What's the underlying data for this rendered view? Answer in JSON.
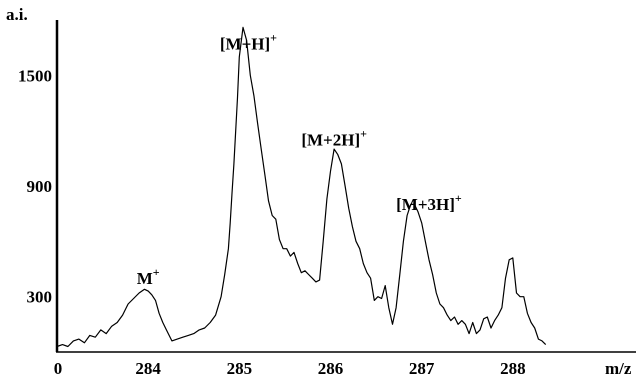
{
  "chart_data": {
    "type": "line",
    "ylabel": "a.i.",
    "xlabel": "m/z",
    "origin_label": "0",
    "xlim": [
      283.0,
      289.34
    ],
    "ylim": [
      0,
      1800
    ],
    "x_ticks": [
      "284",
      "285",
      "286",
      "287",
      "288"
    ],
    "x_tick_values": [
      284,
      285,
      286,
      287,
      288
    ],
    "y_ticks": [
      "300",
      "900",
      "1500"
    ],
    "y_tick_values": [
      300,
      900,
      1500
    ],
    "grid": false,
    "legend": "none",
    "annotations": [
      {
        "text": "M",
        "sup": "+",
        "x": 284.0,
        "y": 370
      },
      {
        "text": "[M+H]",
        "sup": "+",
        "x": 285.1,
        "y": 1640
      },
      {
        "text": "[M+2H]",
        "sup": "+",
        "x": 286.04,
        "y": 1120
      },
      {
        "text": "[M+3H]",
        "sup": "+",
        "x": 287.08,
        "y": 770
      }
    ],
    "series": [
      {
        "line_color": "#000000",
        "x": [
          283.0,
          283.06,
          283.12,
          283.18,
          283.24,
          283.3,
          283.36,
          283.42,
          283.48,
          283.54,
          283.6,
          283.66,
          283.72,
          283.78,
          283.84,
          283.9,
          283.96,
          284.0,
          284.04,
          284.08,
          284.12,
          284.16,
          284.2,
          284.26,
          284.32,
          284.38,
          284.44,
          284.5,
          284.56,
          284.62,
          284.68,
          284.74,
          284.8,
          284.84,
          284.88,
          284.9,
          284.92,
          284.94,
          284.96,
          284.98,
          285.0,
          285.04,
          285.08,
          285.12,
          285.16,
          285.2,
          285.24,
          285.28,
          285.32,
          285.36,
          285.4,
          285.44,
          285.48,
          285.52,
          285.56,
          285.6,
          285.64,
          285.68,
          285.72,
          285.76,
          285.8,
          285.84,
          285.88,
          285.92,
          285.96,
          286.0,
          286.04,
          286.08,
          286.12,
          286.16,
          286.2,
          286.24,
          286.28,
          286.32,
          286.36,
          286.4,
          286.44,
          286.48,
          286.52,
          286.56,
          286.6,
          286.64,
          286.68,
          286.72,
          286.76,
          286.8,
          286.84,
          286.88,
          286.92,
          286.96,
          287.0,
          287.04,
          287.08,
          287.12,
          287.16,
          287.2,
          287.24,
          287.28,
          287.32,
          287.36,
          287.4,
          287.44,
          287.48,
          287.52,
          287.56,
          287.6,
          287.64,
          287.68,
          287.72,
          287.76,
          287.8,
          287.84,
          287.88,
          287.92,
          287.96,
          288.0,
          288.04,
          288.08,
          288.12,
          288.16,
          288.2,
          288.24,
          288.28,
          288.32,
          288.36
        ],
        "y": [
          30,
          40,
          30,
          60,
          70,
          50,
          90,
          80,
          120,
          100,
          140,
          160,
          200,
          260,
          290,
          320,
          340,
          330,
          310,
          280,
          210,
          160,
          120,
          60,
          70,
          80,
          90,
          100,
          120,
          130,
          160,
          200,
          300,
          420,
          560,
          700,
          860,
          1020,
          1200,
          1380,
          1600,
          1760,
          1690,
          1500,
          1390,
          1240,
          1100,
          960,
          820,
          740,
          720,
          610,
          560,
          560,
          520,
          540,
          480,
          430,
          440,
          420,
          400,
          380,
          390,
          600,
          830,
          980,
          1100,
          1070,
          1020,
          900,
          780,
          680,
          600,
          560,
          480,
          430,
          400,
          280,
          300,
          290,
          360,
          240,
          150,
          240,
          420,
          600,
          740,
          800,
          800,
          760,
          700,
          600,
          500,
          420,
          320,
          260,
          240,
          200,
          170,
          190,
          150,
          170,
          150,
          100,
          160,
          100,
          120,
          180,
          190,
          130,
          170,
          200,
          240,
          400,
          500,
          510,
          320,
          300,
          300,
          210,
          160,
          130,
          70,
          60,
          40
        ]
      }
    ]
  }
}
